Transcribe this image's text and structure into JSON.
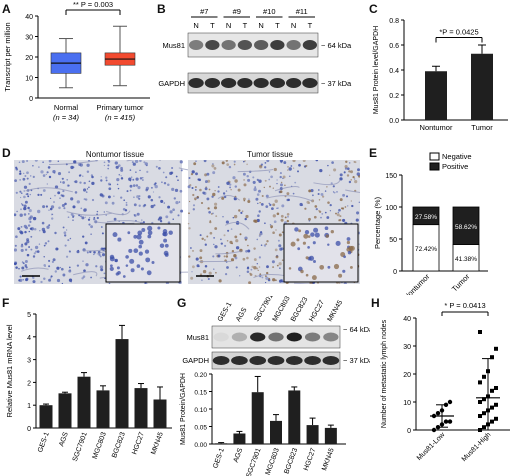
{
  "panels": {
    "A": "A",
    "B": "B",
    "C": "C",
    "D": "D",
    "E": "E",
    "F": "F",
    "G": "G",
    "H": "H"
  },
  "panel_a": {
    "ylabel": "Transcript per million",
    "stat": "** P = 0.003",
    "groups": [
      {
        "label": "Normal",
        "n": "(n = 34)",
        "color": "#4a6ff0",
        "min": 5,
        "q1": 12,
        "median": 17,
        "q3": 22,
        "max": 29
      },
      {
        "label": "Primary tumor",
        "n": "(n = 415)",
        "color": "#f24a2f",
        "min": 6,
        "q1": 16,
        "median": 19,
        "q3": 22,
        "max": 35
      }
    ],
    "yticks": [
      "0",
      "10",
      "20",
      "30",
      "40"
    ],
    "ylim": [
      0,
      40
    ]
  },
  "panel_b": {
    "pairs": [
      "#7",
      "#9",
      "#10",
      "#11"
    ],
    "lanes": [
      "N",
      "T",
      "N",
      "T",
      "N",
      "T",
      "N",
      "T"
    ],
    "rows": [
      {
        "name": "Mus81",
        "size": "64 kDa"
      },
      {
        "name": "GAPDH",
        "size": "37 kDa"
      }
    ]
  },
  "panel_c": {
    "ylabel": "Mus81 Protein level/GAPDH",
    "stat": "*P = 0.0425",
    "categories": [
      "Nontumor",
      "Tumor"
    ],
    "values": [
      0.39,
      0.53
    ],
    "errors": [
      0.04,
      0.07
    ],
    "yticks": [
      "0.0",
      "0.2",
      "0.4",
      "0.6",
      "0.8"
    ],
    "ylim": [
      0,
      0.8
    ]
  },
  "panel_d": {
    "titles": [
      "Nontumor tissue",
      "Tumor tissue"
    ]
  },
  "panel_e": {
    "ylabel": "Percentage (%)",
    "legend": [
      "Negative",
      "Positive"
    ],
    "categories": [
      "Nontumor",
      "Tumor"
    ],
    "negative": [
      72.42,
      41.38
    ],
    "positive": [
      27.58,
      58.62
    ],
    "neg_labels": [
      "72.42%",
      "41.38%"
    ],
    "pos_labels": [
      "27.58%",
      "58.62%"
    ],
    "yticks": [
      "0",
      "50",
      "100",
      "150"
    ],
    "ylim": [
      0,
      150
    ]
  },
  "panel_f": {
    "ylabel": "Relative Mus81 mRNA level",
    "categories": [
      "GES-1",
      "AGS",
      "SGC7901",
      "MGC803",
      "BGC823",
      "HGC27",
      "MKN45"
    ],
    "values": [
      1.0,
      1.52,
      2.25,
      1.65,
      3.9,
      1.75,
      1.25
    ],
    "errors": [
      0.05,
      0.05,
      0.18,
      0.2,
      0.6,
      0.2,
      0.55
    ],
    "yticks": [
      "0",
      "1",
      "2",
      "3",
      "4",
      "5"
    ],
    "ylim": [
      0,
      5
    ]
  },
  "panel_g": {
    "lanes": [
      "GES-1",
      "AGS",
      "SGC7901",
      "MGC803",
      "BGC823",
      "HGC27",
      "MKN45"
    ],
    "rows": [
      {
        "name": "Mus81",
        "size": "64 kDa"
      },
      {
        "name": "GAPDH",
        "size": "37 kDa"
      }
    ],
    "ylabel": "Mus81 Protein/GAPDH",
    "values": [
      0.002,
      0.03,
      0.148,
      0.066,
      0.153,
      0.054,
      0.046
    ],
    "errors": [
      0.002,
      0.006,
      0.045,
      0.018,
      0.01,
      0.02,
      0.008
    ],
    "yticks": [
      "0.00",
      "0.05",
      "0.10",
      "0.15",
      "0.20"
    ],
    "ylim": [
      0,
      0.2
    ]
  },
  "panel_h": {
    "ylabel": "Number of metastatic lymph nodes",
    "stat": "* P = 0.0413",
    "categories": [
      "Mus81-Low",
      "Mus81-High"
    ],
    "means": [
      5,
      11.5
    ],
    "sds": [
      4,
      14
    ],
    "low_points": [
      0,
      1,
      2,
      3,
      3,
      5,
      6,
      7,
      9,
      10
    ],
    "high_points": [
      0,
      1,
      2,
      3,
      4,
      5,
      6,
      7,
      8,
      9,
      10,
      11,
      12,
      14,
      15,
      17,
      19,
      21,
      26,
      29,
      35
    ],
    "yticks": [
      "0",
      "10",
      "20",
      "30",
      "40"
    ],
    "ylim": [
      0,
      40
    ]
  },
  "colors": {
    "bar": "#1f1f1f",
    "histo_bg": "#d9dbe3",
    "nuclei": "#3c4fa8",
    "brown": "#8a6a4a"
  }
}
